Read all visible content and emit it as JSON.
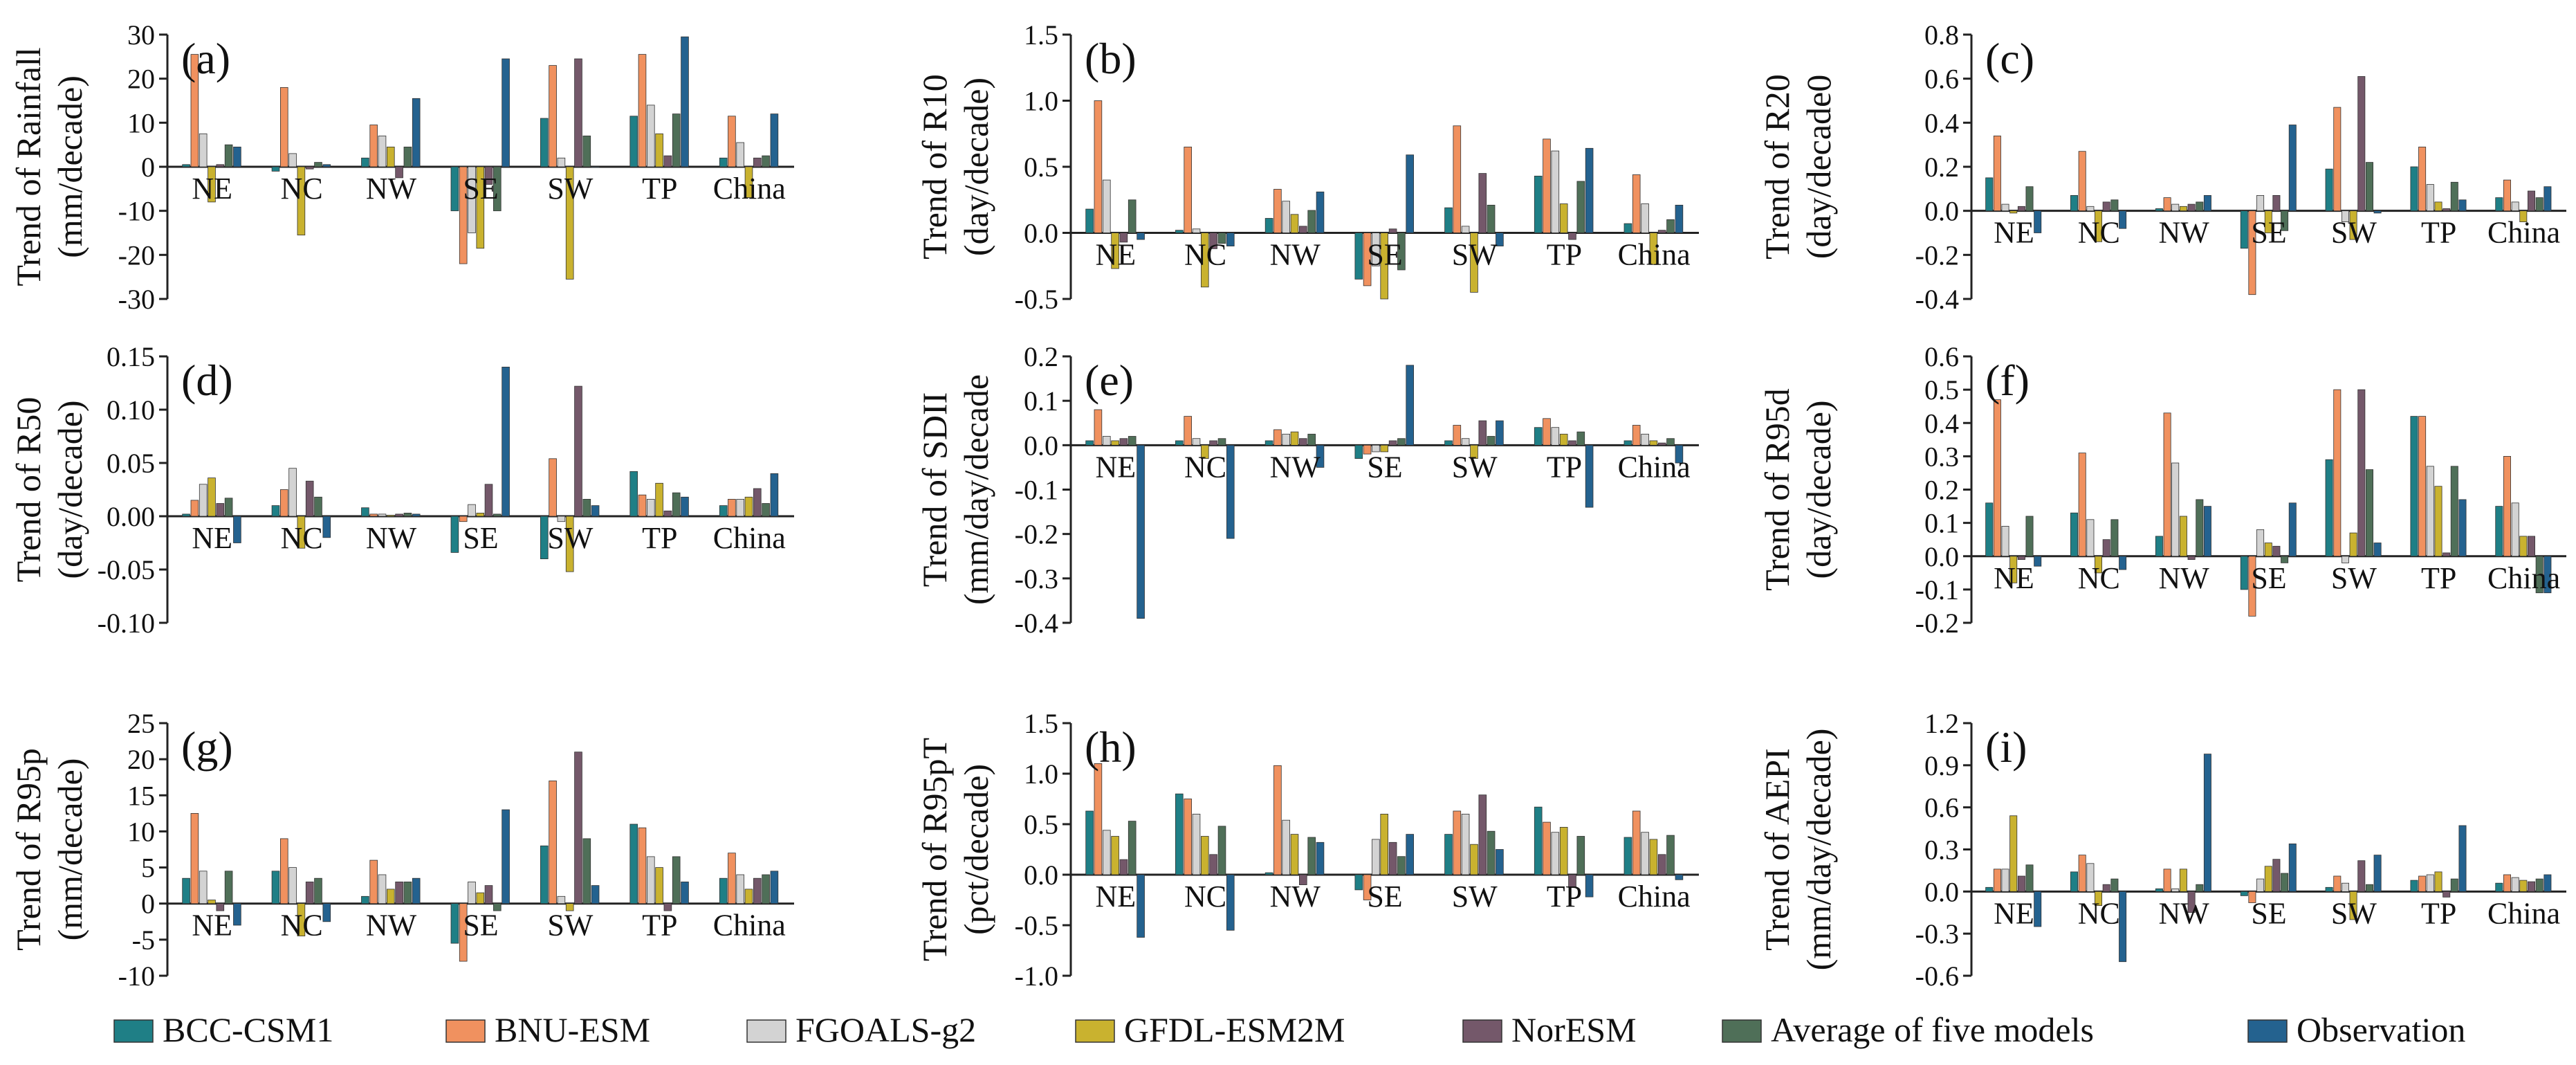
{
  "figure": {
    "series_names": [
      "BCC-CSM1",
      "BNU-ESM",
      "FGOALS-g2",
      "GFDL-ESM2M",
      "NorESM",
      "Average of five models",
      "Observation"
    ],
    "series_colors": [
      "#1f7f86",
      "#f0915f",
      "#d3d3d3",
      "#c9b22f",
      "#74586a",
      "#4f6f58",
      "#24628f"
    ],
    "categories": [
      "NE",
      "NC",
      "NW",
      "SE",
      "SW",
      "TP",
      "China"
    ]
  },
  "legend": {
    "items": [
      {
        "label": "BCC-CSM1",
        "color": "#1f7f86"
      },
      {
        "label": "BNU-ESM",
        "color": "#f0915f"
      },
      {
        "label": "FGOALS-g2",
        "color": "#d3d3d3"
      },
      {
        "label": "GFDL-ESM2M",
        "color": "#c9b22f"
      },
      {
        "label": "NorESM",
        "color": "#74586a"
      },
      {
        "label": "Average of five models",
        "color": "#4f6f58"
      },
      {
        "label": "Observation",
        "color": "#24628f"
      }
    ]
  },
  "chart_data": [
    {
      "type": "bar",
      "panel": "(a)",
      "ylabel_lines": [
        "Trend of Rainfall",
        "(mm/decade)"
      ],
      "ylim": [
        -30,
        30
      ],
      "ticks": [
        -30,
        -20,
        -10,
        0,
        10,
        20,
        30
      ],
      "tick_labels": [
        "-30",
        "-20",
        "-10",
        "0",
        "10",
        "20",
        "30"
      ],
      "categories": [
        "NE",
        "NC",
        "NW",
        "SE",
        "SW",
        "TP",
        "China"
      ],
      "series": [
        {
          "name": "BCC-CSM1",
          "values": [
            0.5,
            -1,
            2,
            -10,
            11,
            11.5,
            2
          ]
        },
        {
          "name": "BNU-ESM",
          "values": [
            25.5,
            18,
            9.5,
            -22,
            23,
            25.5,
            11.5
          ]
        },
        {
          "name": "FGOALS-g2",
          "values": [
            7.5,
            3,
            7,
            -15,
            2,
            14,
            5.5
          ]
        },
        {
          "name": "GFDL-ESM2M",
          "values": [
            -8,
            -15.5,
            4.5,
            -18.5,
            -25.5,
            7.5,
            -7
          ]
        },
        {
          "name": "NorESM",
          "values": [
            0.5,
            -0.5,
            -2.5,
            -4,
            24.5,
            2.5,
            2
          ]
        },
        {
          "name": "Average of five models",
          "values": [
            5,
            1,
            4.5,
            -10,
            7,
            12,
            2.5
          ]
        },
        {
          "name": "Observation",
          "values": [
            4.5,
            0.5,
            15.5,
            24.5,
            0,
            29.5,
            12
          ]
        }
      ]
    },
    {
      "type": "bar",
      "panel": "(b)",
      "ylabel_lines": [
        "Trend of R10",
        "(day/decade)"
      ],
      "ylim": [
        -0.5,
        1.5
      ],
      "ticks": [
        -0.5,
        0,
        0.5,
        1,
        1.5
      ],
      "tick_labels": [
        "-0.5",
        "0.0",
        "0.5",
        "1.0",
        "1.5"
      ],
      "categories": [
        "NE",
        "NC",
        "NW",
        "SE",
        "SW",
        "TP",
        "China"
      ],
      "series": [
        {
          "name": "BCC-CSM1",
          "values": [
            0.18,
            0.02,
            0.11,
            -0.35,
            0.19,
            0.43,
            0.07
          ]
        },
        {
          "name": "BNU-ESM",
          "values": [
            1.0,
            0.65,
            0.33,
            -0.4,
            0.81,
            0.71,
            0.44
          ]
        },
        {
          "name": "FGOALS-g2",
          "values": [
            0.4,
            0.03,
            0.24,
            -0.25,
            0.05,
            0.62,
            0.22
          ]
        },
        {
          "name": "GFDL-ESM2M",
          "values": [
            -0.27,
            -0.41,
            0.14,
            -0.5,
            -0.45,
            0.22,
            -0.24
          ]
        },
        {
          "name": "NorESM",
          "values": [
            -0.07,
            -0.12,
            0.05,
            0.03,
            0.45,
            -0.05,
            0.02
          ]
        },
        {
          "name": "Average of five models",
          "values": [
            0.25,
            -0.08,
            0.17,
            -0.28,
            0.21,
            0.39,
            0.1
          ]
        },
        {
          "name": "Observation",
          "values": [
            -0.05,
            -0.1,
            0.31,
            0.59,
            -0.1,
            0.64,
            0.21
          ]
        }
      ]
    },
    {
      "type": "bar",
      "panel": "(c)",
      "ylabel_lines": [
        "Trend of R20",
        "(day/decade0"
      ],
      "ylim": [
        -0.4,
        0.8
      ],
      "ticks": [
        -0.4,
        -0.2,
        0,
        0.2,
        0.4,
        0.6,
        0.8
      ],
      "tick_labels": [
        "-0.4",
        "-0.2",
        "0.0",
        "0.2",
        "0.4",
        "0.6",
        "0.8"
      ],
      "categories": [
        "NE",
        "NC",
        "NW",
        "SE",
        "SW",
        "TP",
        "China"
      ],
      "series": [
        {
          "name": "BCC-CSM1",
          "values": [
            0.15,
            0.07,
            0.01,
            -0.17,
            0.19,
            0.2,
            0.06
          ]
        },
        {
          "name": "BNU-ESM",
          "values": [
            0.34,
            0.27,
            0.06,
            -0.38,
            0.47,
            0.29,
            0.14
          ]
        },
        {
          "name": "FGOALS-g2",
          "values": [
            0.03,
            0.02,
            0.03,
            0.07,
            -0.05,
            0.12,
            0.04
          ]
        },
        {
          "name": "GFDL-ESM2M",
          "values": [
            -0.01,
            -0.14,
            0.02,
            -0.1,
            -0.13,
            0.04,
            -0.05
          ]
        },
        {
          "name": "NorESM",
          "values": [
            0.02,
            0.04,
            0.03,
            0.07,
            0.61,
            0.01,
            0.09
          ]
        },
        {
          "name": "Average of five models",
          "values": [
            0.11,
            0.05,
            0.04,
            -0.09,
            0.22,
            0.13,
            0.06
          ]
        },
        {
          "name": "Observation",
          "values": [
            -0.1,
            -0.08,
            0.07,
            0.39,
            -0.01,
            0.05,
            0.11
          ]
        }
      ]
    },
    {
      "type": "bar",
      "panel": "(d)",
      "ylabel_lines": [
        "Trend of  R50",
        "(day/decade)"
      ],
      "ylim": [
        -0.1,
        0.15
      ],
      "ticks": [
        -0.1,
        -0.05,
        0,
        0.05,
        0.1,
        0.15
      ],
      "tick_labels": [
        "-0.10",
        "-0.05",
        "0.00",
        "0.05",
        "0.10",
        "0.15"
      ],
      "categories": [
        "NE",
        "NC",
        "NW",
        "SE",
        "SW",
        "TP",
        "China"
      ],
      "series": [
        {
          "name": "BCC-CSM1",
          "values": [
            0.002,
            0.01,
            0.008,
            -0.034,
            -0.04,
            0.042,
            0.01
          ]
        },
        {
          "name": "BNU-ESM",
          "values": [
            0.015,
            0.025,
            0.002,
            -0.005,
            0.054,
            0.02,
            0.016
          ]
        },
        {
          "name": "FGOALS-g2",
          "values": [
            0.03,
            0.045,
            0.002,
            0.011,
            -0.005,
            0.016,
            0.016
          ]
        },
        {
          "name": "GFDL-ESM2M",
          "values": [
            0.036,
            -0.03,
            0.001,
            0.003,
            -0.052,
            0.031,
            0.018
          ]
        },
        {
          "name": "NorESM",
          "values": [
            0.012,
            0.033,
            0.002,
            0.03,
            0.122,
            0.005,
            0.026
          ]
        },
        {
          "name": "Average of five models",
          "values": [
            0.017,
            0.018,
            0.003,
            0.002,
            0.016,
            0.022,
            0.012
          ]
        },
        {
          "name": "Observation",
          "values": [
            -0.025,
            -0.02,
            0.002,
            0.14,
            0.01,
            0.018,
            0.04
          ]
        }
      ]
    },
    {
      "type": "bar",
      "panel": "(e)",
      "ylabel_lines": [
        "Trend of SDII",
        "(mm/day/decade"
      ],
      "ylim": [
        -0.4,
        0.2
      ],
      "ticks": [
        -0.4,
        -0.3,
        -0.2,
        -0.1,
        0,
        0.1,
        0.2
      ],
      "tick_labels": [
        "-0.4",
        "-0.3",
        "-0.2",
        "-0.1",
        "0.0",
        "0.1",
        "0.2"
      ],
      "categories": [
        "NE",
        "NC",
        "NW",
        "SE",
        "SW",
        "TP",
        "China"
      ],
      "series": [
        {
          "name": "BCC-CSM1",
          "values": [
            0.01,
            0.01,
            0.01,
            -0.03,
            0.01,
            0.04,
            0.01
          ]
        },
        {
          "name": "BNU-ESM",
          "values": [
            0.08,
            0.065,
            0.035,
            -0.02,
            0.045,
            0.06,
            0.045
          ]
        },
        {
          "name": "FGOALS-g2",
          "values": [
            0.02,
            0.015,
            0.025,
            -0.015,
            0.015,
            0.04,
            0.025
          ]
        },
        {
          "name": "GFDL-ESM2M",
          "values": [
            0.01,
            -0.03,
            0.03,
            -0.015,
            -0.03,
            0.025,
            0.01
          ]
        },
        {
          "name": "NorESM",
          "values": [
            0.015,
            0.01,
            0.015,
            0.01,
            0.055,
            0.01,
            0.005
          ]
        },
        {
          "name": "Average of five models",
          "values": [
            0.02,
            0.015,
            0.025,
            0.015,
            0.02,
            0.03,
            0.015
          ]
        },
        {
          "name": "Observation",
          "values": [
            -0.39,
            -0.21,
            -0.05,
            0.18,
            0.055,
            -0.14,
            -0.04
          ]
        }
      ]
    },
    {
      "type": "bar",
      "panel": "(f)",
      "ylabel_lines": [
        "Trend of R95d",
        "(day/decade)"
      ],
      "ylim": [
        -0.2,
        0.6
      ],
      "ticks": [
        -0.2,
        -0.1,
        0,
        0.1,
        0.2,
        0.3,
        0.4,
        0.5,
        0.6
      ],
      "tick_labels": [
        "-0.2",
        "-0.1",
        "0.0",
        "0.1",
        "0.2",
        "0.3",
        "0.4",
        "0.5",
        "0.6"
      ],
      "categories": [
        "NE",
        "NC",
        "NW",
        "SE",
        "SW",
        "TP",
        "China"
      ],
      "series": [
        {
          "name": "BCC-CSM1",
          "values": [
            0.16,
            0.13,
            0.06,
            -0.1,
            0.29,
            0.42,
            0.15
          ]
        },
        {
          "name": "BNU-ESM",
          "values": [
            0.47,
            0.31,
            0.43,
            -0.18,
            0.5,
            0.42,
            0.3
          ]
        },
        {
          "name": "FGOALS-g2",
          "values": [
            0.09,
            0.11,
            0.28,
            0.08,
            -0.02,
            0.27,
            0.16
          ]
        },
        {
          "name": "GFDL-ESM2M",
          "values": [
            -0.08,
            -0.05,
            0.12,
            0.04,
            0.07,
            0.21,
            0.06
          ]
        },
        {
          "name": "NorESM",
          "values": [
            -0.01,
            0.05,
            -0.01,
            0.03,
            0.5,
            0.01,
            0.06
          ]
        },
        {
          "name": "Average of five models",
          "values": [
            0.12,
            0.11,
            0.17,
            -0.02,
            0.26,
            0.27,
            -0.11
          ]
        },
        {
          "name": "Observation",
          "values": [
            -0.03,
            -0.04,
            0.15,
            0.16,
            0.04,
            0.17,
            -0.11
          ]
        }
      ]
    },
    {
      "type": "bar",
      "panel": "(g)",
      "ylabel_lines": [
        "Trend of R95p",
        "(mm/decade)"
      ],
      "ylim": [
        -10,
        25
      ],
      "ticks": [
        -10,
        -5,
        0,
        5,
        10,
        15,
        20,
        25
      ],
      "tick_labels": [
        "-10",
        "-5",
        "0",
        "5",
        "10",
        "15",
        "20",
        "25"
      ],
      "categories": [
        "NE",
        "NC",
        "NW",
        "SE",
        "SW",
        "TP",
        "China"
      ],
      "series": [
        {
          "name": "BCC-CSM1",
          "values": [
            3.5,
            4.5,
            1,
            -5.5,
            8,
            11,
            3.5
          ]
        },
        {
          "name": "BNU-ESM",
          "values": [
            12.5,
            9,
            6,
            -8,
            17,
            10.5,
            7
          ]
        },
        {
          "name": "FGOALS-g2",
          "values": [
            4.5,
            5,
            4,
            3,
            1,
            6.5,
            4
          ]
        },
        {
          "name": "GFDL-ESM2M",
          "values": [
            0.5,
            -4.5,
            2,
            1.5,
            -1,
            5,
            2
          ]
        },
        {
          "name": "NorESM",
          "values": [
            -1,
            3,
            3,
            2.5,
            21,
            -1,
            3.5
          ]
        },
        {
          "name": "Average of five models",
          "values": [
            4.5,
            3.5,
            3,
            -1,
            9,
            6.5,
            4
          ]
        },
        {
          "name": "Observation",
          "values": [
            -3,
            -2.5,
            3.5,
            13,
            2.5,
            3,
            4.5
          ]
        }
      ]
    },
    {
      "type": "bar",
      "panel": "(h)",
      "ylabel_lines": [
        "Trend of R95pT",
        "(pct/decade)"
      ],
      "ylim": [
        -1.0,
        1.5
      ],
      "ticks": [
        -1,
        -0.5,
        0,
        0.5,
        1,
        1.5
      ],
      "tick_labels": [
        "-1.0",
        "-0.5",
        "0.0",
        "0.5",
        "1.0",
        "1.5"
      ],
      "categories": [
        "NE",
        "NC",
        "NW",
        "SE",
        "SW",
        "TP",
        "China"
      ],
      "series": [
        {
          "name": "BCC-CSM1",
          "values": [
            0.63,
            0.8,
            0.02,
            -0.15,
            0.4,
            0.67,
            0.37
          ]
        },
        {
          "name": "BNU-ESM",
          "values": [
            1.1,
            0.75,
            1.08,
            -0.25,
            0.63,
            0.52,
            0.63
          ]
        },
        {
          "name": "FGOALS-g2",
          "values": [
            0.44,
            0.6,
            0.54,
            0.35,
            0.6,
            0.42,
            0.42
          ]
        },
        {
          "name": "GFDL-ESM2M",
          "values": [
            0.38,
            0.38,
            0.4,
            0.6,
            0.3,
            0.47,
            0.35
          ]
        },
        {
          "name": "NorESM",
          "values": [
            0.15,
            0.2,
            -0.1,
            0.32,
            0.79,
            -0.12,
            0.2
          ]
        },
        {
          "name": "Average of five models",
          "values": [
            0.53,
            0.48,
            0.37,
            0.18,
            0.43,
            0.38,
            0.39
          ]
        },
        {
          "name": "Observation",
          "values": [
            -0.62,
            -0.55,
            0.32,
            0.4,
            0.25,
            -0.22,
            -0.05
          ]
        }
      ]
    },
    {
      "type": "bar",
      "panel": "(i)",
      "ylabel_lines": [
        "Trend of AEPI",
        "(mm/day/decade)"
      ],
      "ylim": [
        -0.6,
        1.2
      ],
      "ticks": [
        -0.6,
        -0.3,
        0,
        0.3,
        0.6,
        0.9,
        1.2
      ],
      "tick_labels": [
        "-0.6",
        "-0.3",
        "0.0",
        "0.3",
        "0.6",
        "0.9",
        "1.2"
      ],
      "categories": [
        "NE",
        "NC",
        "NW",
        "SE",
        "SW",
        "TP",
        "China"
      ],
      "series": [
        {
          "name": "BCC-CSM1",
          "values": [
            0.03,
            0.14,
            0.02,
            -0.03,
            0.03,
            0.08,
            0.06
          ]
        },
        {
          "name": "BNU-ESM",
          "values": [
            0.16,
            0.26,
            0.16,
            -0.08,
            0.11,
            0.11,
            0.12
          ]
        },
        {
          "name": "FGOALS-g2",
          "values": [
            0.16,
            0.2,
            0.02,
            0.09,
            0.06,
            0.12,
            0.1
          ]
        },
        {
          "name": "GFDL-ESM2M",
          "values": [
            0.54,
            -0.1,
            0.16,
            0.18,
            -0.2,
            0.14,
            0.08
          ]
        },
        {
          "name": "NorESM",
          "values": [
            0.11,
            0.05,
            -0.15,
            0.23,
            0.22,
            -0.04,
            0.07
          ]
        },
        {
          "name": "Average of five models",
          "values": [
            0.19,
            0.09,
            0.05,
            0.13,
            0.05,
            0.09,
            0.09
          ]
        },
        {
          "name": "Observation",
          "values": [
            -0.25,
            -0.5,
            0.98,
            0.34,
            0.26,
            0.47,
            0.12
          ]
        }
      ]
    }
  ]
}
